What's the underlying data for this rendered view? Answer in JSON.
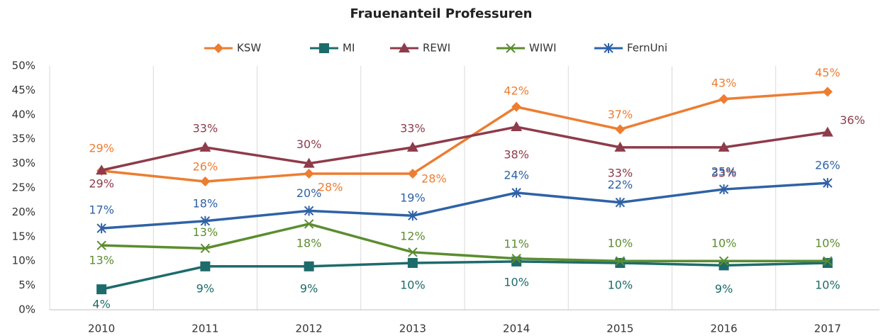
{
  "chart_data": {
    "type": "line",
    "title": "Frauenanteil Professuren",
    "categories": [
      "2010",
      "2011",
      "2012",
      "2013",
      "2014",
      "2015",
      "2016",
      "2017"
    ],
    "ylim": [
      0,
      50
    ],
    "yticks": [
      {
        "value": 0,
        "label": "0%"
      },
      {
        "value": 5,
        "label": "5%"
      },
      {
        "value": 10,
        "label": "10%"
      },
      {
        "value": 15,
        "label": "15%"
      },
      {
        "value": 20,
        "label": "20%"
      },
      {
        "value": 25,
        "label": "25%"
      },
      {
        "value": 30,
        "label": "30%"
      },
      {
        "value": 35,
        "label": "35%"
      },
      {
        "value": 40,
        "label": "40%"
      },
      {
        "value": 45,
        "label": "45%"
      },
      {
        "value": 50,
        "label": "50%"
      }
    ],
    "grid": true,
    "legend": "top",
    "series": [
      {
        "name": "KSW",
        "color": "#ed7d31",
        "marker": "diamond",
        "values": [
          28.5,
          26.3,
          27.9,
          27.9,
          41.6,
          37.0,
          43.2,
          44.7
        ],
        "value_labels": [
          "29%",
          "26%",
          "28%",
          "28%",
          "42%",
          "37%",
          "43%",
          "45%"
        ]
      },
      {
        "name": "MI",
        "color": "#1e6b6b",
        "marker": "square",
        "values": [
          4.2,
          8.9,
          8.9,
          9.6,
          9.9,
          9.6,
          9.1,
          9.6
        ],
        "value_labels": [
          "4%",
          "9%",
          "9%",
          "10%",
          "10%",
          "10%",
          "9%",
          "10%"
        ]
      },
      {
        "name": "REWI",
        "color": "#8e3b4b",
        "marker": "triangle",
        "values": [
          28.6,
          33.3,
          30.0,
          33.3,
          37.5,
          33.3,
          33.3,
          36.4
        ],
        "value_labels": [
          "29%",
          "33%",
          "30%",
          "33%",
          "38%",
          "33%",
          "33%",
          "36%"
        ]
      },
      {
        "name": "WIWI",
        "color": "#5b8d2f",
        "marker": "x",
        "values": [
          13.2,
          12.6,
          17.6,
          11.8,
          10.5,
          10.0,
          10.0,
          10.0
        ],
        "value_labels": [
          "13%",
          "13%",
          "18%",
          "12%",
          "11%",
          "10%",
          "10%",
          "10%"
        ]
      },
      {
        "name": "FernUni",
        "color": "#2e62a6",
        "marker": "star",
        "values": [
          16.7,
          18.2,
          20.3,
          19.3,
          24.0,
          22.0,
          24.7,
          26.0
        ],
        "value_labels": [
          "17%",
          "18%",
          "20%",
          "19%",
          "24%",
          "22%",
          "25%",
          "26%"
        ]
      }
    ]
  }
}
